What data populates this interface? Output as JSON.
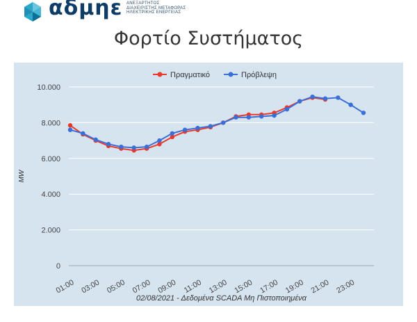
{
  "logo": {
    "word": "αδμηε",
    "tagline": [
      "ΑΝΕΞΑΡΤΗΤΟΣ",
      "ΔΙΑΧΕΙΡΙΣΤΗΣ ΜΕΤΑΦΟΡΑΣ",
      "ΗΛΕΚΤΡΙΚΗΣ ΕΝΕΡΓΕΙΑΣ"
    ]
  },
  "page_title": "Φορτίο Συστήματος",
  "chart_data": {
    "type": "line",
    "title": "",
    "xlabel": "02/08/2021 - Δεδομένα SCADA Μη Πιστοποιημένα",
    "ylabel": "MW",
    "ylim": [
      0,
      10000
    ],
    "yticks": [
      "0",
      "2.000",
      "4.000",
      "6.000",
      "8.000",
      "10.000"
    ],
    "ytick_values": [
      0,
      2000,
      4000,
      6000,
      8000,
      10000
    ],
    "categories": [
      "01:00",
      "02:00",
      "03:00",
      "04:00",
      "05:00",
      "06:00",
      "07:00",
      "08:00",
      "09:00",
      "10:00",
      "11:00",
      "12:00",
      "13:00",
      "14:00",
      "15:00",
      "16:00",
      "17:00",
      "18:00",
      "19:00",
      "20:00",
      "21:00",
      "22:00",
      "23:00",
      "24:00"
    ],
    "xtick_labels": [
      "01:00",
      "03:00",
      "05:00",
      "07:00",
      "09:00",
      "11:00",
      "13:00",
      "15:00",
      "17:00",
      "19:00",
      "21:00",
      "23:00"
    ],
    "legend_position": "top-center",
    "grid": true,
    "background": "#d6e4f0",
    "series": [
      {
        "name": "Πραγματικό",
        "color": "#e8392b",
        "values": [
          7850,
          7350,
          7000,
          6700,
          6550,
          6450,
          6550,
          6800,
          7200,
          7500,
          7600,
          7750,
          8000,
          8350,
          8450,
          8450,
          8550,
          8850,
          9200,
          9400,
          9300,
          null,
          null,
          null
        ]
      },
      {
        "name": "Πρόβλεψη",
        "color": "#3a6fd8",
        "values": [
          7600,
          7400,
          7050,
          6800,
          6650,
          6600,
          6650,
          7000,
          7400,
          7600,
          7700,
          7800,
          8000,
          8300,
          8300,
          8350,
          8400,
          8750,
          9200,
          9450,
          9350,
          9400,
          9000,
          8550
        ]
      }
    ]
  }
}
